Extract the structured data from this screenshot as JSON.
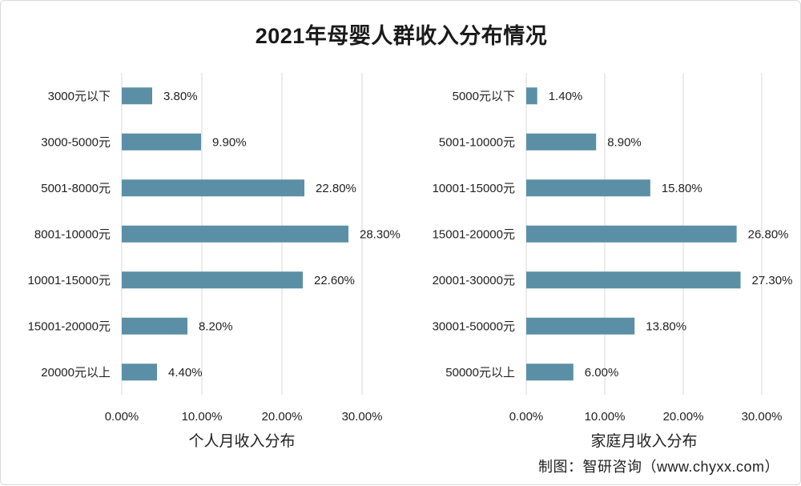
{
  "title": "2021年母婴人群收入分布情况",
  "source": "制图：智研咨询（www.chyxx.com）",
  "bar_color": "#5b8fa6",
  "chart_data": [
    {
      "type": "bar",
      "orientation": "horizontal",
      "xlabel": "个人月收入分布",
      "xlim": [
        0,
        30
      ],
      "ticks": [
        "0.00%",
        "10.00%",
        "20.00%",
        "30.00%"
      ],
      "categories": [
        "3000元以下",
        "3000-5000元",
        "5001-8000元",
        "8001-10000元",
        "10001-15000元",
        "15001-20000元",
        "20000元以上"
      ],
      "values": [
        3.8,
        9.9,
        22.8,
        28.3,
        22.6,
        8.2,
        4.4
      ],
      "value_labels": [
        "3.80%",
        "9.90%",
        "22.80%",
        "28.30%",
        "22.60%",
        "8.20%",
        "4.40%"
      ]
    },
    {
      "type": "bar",
      "orientation": "horizontal",
      "xlabel": "家庭月收入分布",
      "xlim": [
        0,
        30
      ],
      "ticks": [
        "0.00%",
        "10.00%",
        "20.00%",
        "30.00%"
      ],
      "categories": [
        "5000元以下",
        "5001-10000元",
        "10001-15000元",
        "15001-20000元",
        "20001-30000元",
        "30001-50000元",
        "50000元以上"
      ],
      "values": [
        1.4,
        8.9,
        15.8,
        26.8,
        27.3,
        13.8,
        6.0
      ],
      "value_labels": [
        "1.40%",
        "8.90%",
        "15.80%",
        "26.80%",
        "27.30%",
        "13.80%",
        "6.00%"
      ]
    }
  ]
}
